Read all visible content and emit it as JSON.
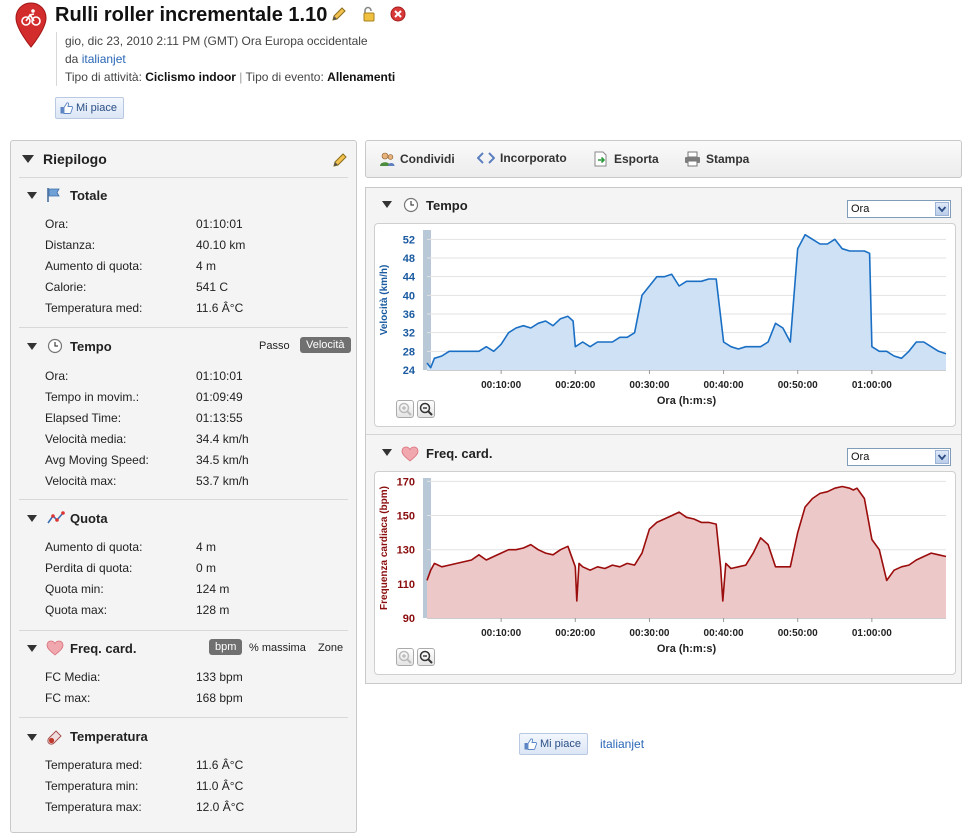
{
  "header": {
    "title": "Rulli roller incrementale 1.10",
    "date": "gio, dic 23, 2010 2:11 PM (GMT) Ora Europa occidentale",
    "by_prefix": "da",
    "author": "italianjet",
    "activity_type_label": "Tipo di attività:",
    "activity_type": "Ciclismo indoor",
    "event_type_label": "Tipo di evento:",
    "event_type": "Allenamenti",
    "like_label": "Mi piace"
  },
  "summary": {
    "title": "Riepilogo",
    "totale": {
      "title": "Totale",
      "rows": [
        {
          "label": "Ora:",
          "value": "01:10:01"
        },
        {
          "label": "Distanza:",
          "value": "40.10 km"
        },
        {
          "label": "Aumento di quota:",
          "value": "4 m"
        },
        {
          "label": "Calorie:",
          "value": "541 C"
        },
        {
          "label": "Temperatura med:",
          "value": "11.6 Â°C"
        }
      ]
    },
    "tempo": {
      "title": "Tempo",
      "toggle": [
        "Passo",
        "Velocità"
      ],
      "active_toggle": "Velocità",
      "rows": [
        {
          "label": "Ora:",
          "value": "01:10:01"
        },
        {
          "label": "Tempo in movim.:",
          "value": "01:09:49"
        },
        {
          "label": "Elapsed Time:",
          "value": "01:13:55"
        },
        {
          "label": "Velocità media:",
          "value": "34.4 km/h"
        },
        {
          "label": "Avg Moving Speed:",
          "value": "34.5 km/h"
        },
        {
          "label": "Velocità max:",
          "value": "53.7 km/h"
        }
      ]
    },
    "quota": {
      "title": "Quota",
      "rows": [
        {
          "label": "Aumento di quota:",
          "value": "4 m"
        },
        {
          "label": "Perdita di quota:",
          "value": "0 m"
        },
        {
          "label": "Quota min:",
          "value": "124 m"
        },
        {
          "label": "Quota max:",
          "value": "128 m"
        }
      ]
    },
    "freq": {
      "title": "Freq. card.",
      "toggle": [
        "bpm",
        "% massima",
        "Zone"
      ],
      "active_toggle": "bpm",
      "rows": [
        {
          "label": "FC Media:",
          "value": "133 bpm"
        },
        {
          "label": "FC max:",
          "value": "168 bpm"
        }
      ]
    },
    "temperatura": {
      "title": "Temperatura",
      "rows": [
        {
          "label": "Temperatura med:",
          "value": "11.6 Â°C"
        },
        {
          "label": "Temperatura min:",
          "value": "11.0 Â°C"
        },
        {
          "label": "Temperatura max:",
          "value": "12.0 Â°C"
        }
      ]
    }
  },
  "toolbar": {
    "share": "Condividi",
    "embed": "Incorporato",
    "export": "Esporta",
    "print": "Stampa"
  },
  "charts_panel": {
    "speed_title": "Tempo",
    "speed_select": "Ora",
    "hr_title": "Freq. card.",
    "hr_select": "Ora"
  },
  "footer": {
    "like_label": "Mi piace",
    "author": "italianjet"
  },
  "colors": {
    "speed_line": "#1a6fc4",
    "speed_fill": "#cfe2f5",
    "hr_line": "#9b0c0c",
    "hr_fill": "#ecc8c8",
    "accent_link": "#2b67b6"
  },
  "chart_data": [
    {
      "type": "area",
      "title": "",
      "xlabel": "Ora (h:m:s)",
      "ylabel": "Velocità (km/h)",
      "x_unit": "minutes",
      "xlim": [
        0,
        70
      ],
      "ylim": [
        24,
        54
      ],
      "yticks": [
        24,
        28,
        32,
        36,
        40,
        44,
        48,
        52
      ],
      "xticks": [
        "00:10:00",
        "00:20:00",
        "00:30:00",
        "00:40:00",
        "00:50:00",
        "01:00:00"
      ],
      "x": [
        0,
        0.5,
        1,
        2,
        3,
        5,
        7,
        8,
        9,
        10,
        11,
        12,
        13,
        14,
        15,
        16,
        17,
        18,
        19,
        19.7,
        20,
        21,
        22,
        23,
        24,
        25,
        26,
        27,
        28,
        29,
        30,
        31,
        32,
        33,
        34,
        35,
        36,
        37,
        38,
        39,
        40,
        41,
        42,
        43,
        44,
        45,
        46,
        47,
        48,
        49,
        50,
        51,
        52,
        53,
        54,
        55,
        56,
        57,
        58,
        59,
        59.7,
        60,
        61,
        62,
        63,
        64,
        65,
        66,
        67,
        68,
        69,
        70
      ],
      "series": [
        {
          "values": [
            25.5,
            24.5,
            26.5,
            27,
            28,
            28,
            28,
            29,
            28,
            29.5,
            32,
            33,
            33.5,
            33,
            34,
            34.5,
            33.5,
            35,
            35.5,
            34.5,
            29,
            30,
            29,
            30,
            30,
            30,
            31,
            31,
            32,
            40,
            42,
            44,
            44,
            44.5,
            42,
            43,
            43,
            43,
            43.5,
            43.5,
            30,
            29,
            28.5,
            29,
            29,
            29,
            30,
            34,
            33,
            30,
            50,
            53,
            52,
            51,
            51,
            52,
            50,
            49.5,
            49.5,
            49.5,
            49,
            29,
            28,
            28,
            27,
            26.5,
            28,
            30,
            30,
            29,
            28,
            27.5
          ]
        }
      ]
    },
    {
      "type": "area",
      "title": "",
      "xlabel": "Ora (h:m:s)",
      "ylabel": "Frequenza cardiaca (bpm)",
      "x_unit": "minutes",
      "xlim": [
        0,
        70
      ],
      "ylim": [
        90,
        172
      ],
      "yticks": [
        90,
        110,
        130,
        150,
        170
      ],
      "xticks": [
        "00:10:00",
        "00:20:00",
        "00:30:00",
        "00:40:00",
        "00:50:00",
        "01:00:00"
      ],
      "x": [
        0,
        0.5,
        1,
        2,
        3,
        4,
        6,
        7,
        8,
        9,
        10,
        11,
        12,
        13,
        14,
        15,
        16,
        17,
        18,
        19,
        20,
        20.2,
        20.5,
        21,
        22,
        23,
        24,
        25,
        26,
        27,
        28,
        29,
        30,
        31,
        32,
        33,
        34,
        35,
        36,
        37,
        38,
        39,
        39.6,
        39.9,
        40.3,
        41,
        42,
        43,
        44,
        45,
        46,
        47,
        48,
        49,
        50,
        51,
        52,
        53,
        54,
        55,
        56,
        57,
        57.5,
        58,
        59,
        60,
        61,
        62,
        63,
        64,
        65,
        66,
        67,
        68,
        69,
        70
      ],
      "series": [
        {
          "values": [
            112,
            118,
            122,
            120,
            121,
            122,
            124,
            127,
            124,
            126,
            128,
            130,
            130,
            131,
            133,
            130,
            128,
            127,
            130,
            132,
            120,
            100,
            122,
            120,
            118,
            120,
            119,
            121,
            120,
            122,
            121,
            128,
            142,
            146,
            148,
            150,
            152,
            149,
            148,
            146,
            146,
            145,
            120,
            100,
            122,
            119,
            120,
            121,
            128,
            137,
            133,
            120,
            120,
            120,
            140,
            155,
            160,
            163,
            164,
            166,
            167,
            166,
            165,
            166,
            160,
            136,
            130,
            112,
            118,
            120,
            121,
            124,
            126,
            128,
            127,
            126
          ]
        }
      ]
    }
  ]
}
